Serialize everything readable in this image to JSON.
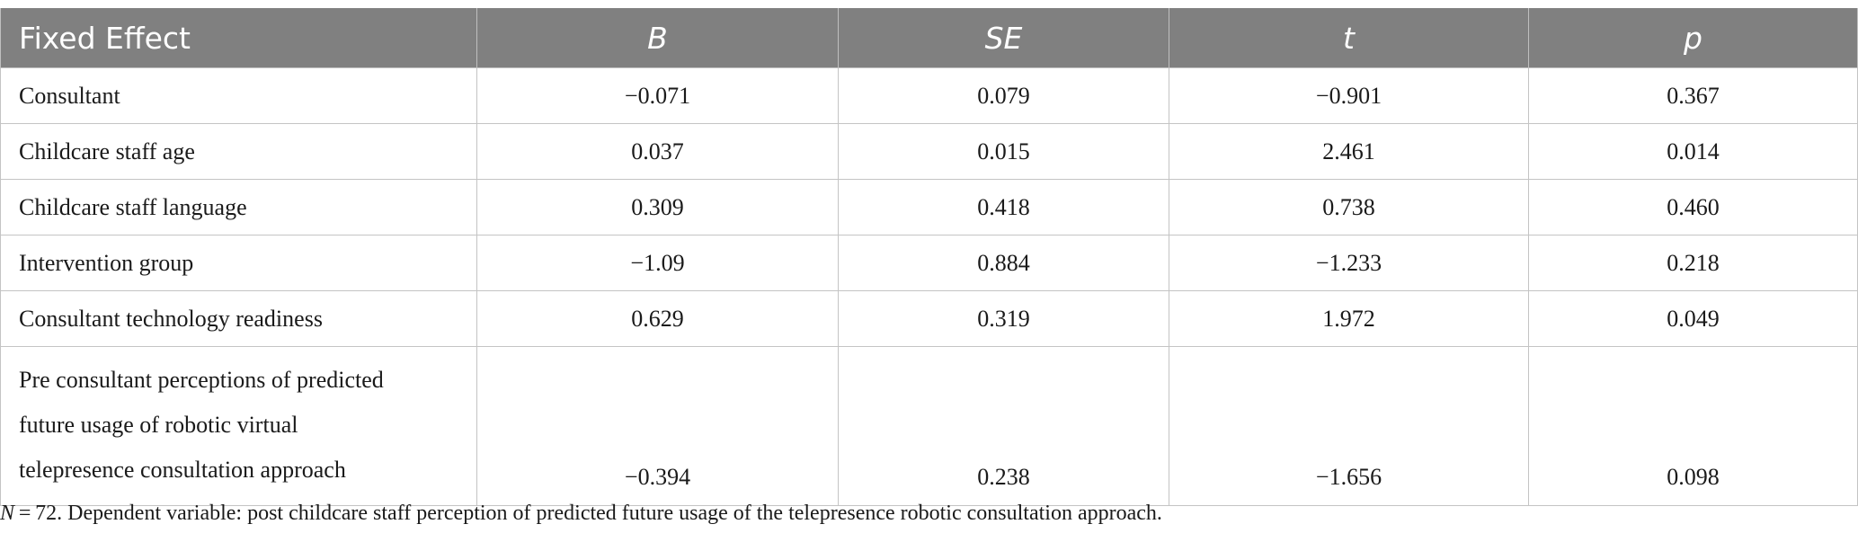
{
  "table": {
    "headers": [
      "Fixed Effect",
      "B",
      "SE",
      "t",
      "p"
    ],
    "rows": [
      {
        "effect": "Consultant",
        "B": "−0.071",
        "SE": "0.079",
        "t": "−0.901",
        "p": "0.367"
      },
      {
        "effect": "Childcare staff age",
        "B": "0.037",
        "SE": "0.015",
        "t": "2.461",
        "p": "0.014"
      },
      {
        "effect": "Childcare staff language",
        "B": "0.309",
        "SE": "0.418",
        "t": "0.738",
        "p": "0.460"
      },
      {
        "effect": "Intervention group",
        "B": "−1.09",
        "SE": "0.884",
        "t": "−1.233",
        "p": "0.218"
      },
      {
        "effect": "Consultant technology readiness",
        "B": "0.629",
        "SE": "0.319",
        "t": "1.972",
        "p": "0.049"
      },
      {
        "effect_lines": [
          "Pre consultant perceptions of predicted",
          "future usage of robotic virtual",
          "telepresence consultation approach"
        ],
        "B": "−0.394",
        "SE": "0.238",
        "t": "−1.656",
        "p": "0.098"
      }
    ]
  },
  "footnote": {
    "n_label": "N",
    "n_value": " = 72",
    "text": ". Dependent variable: post childcare staff perception of predicted future usage of the telepresence robotic consultation approach."
  }
}
